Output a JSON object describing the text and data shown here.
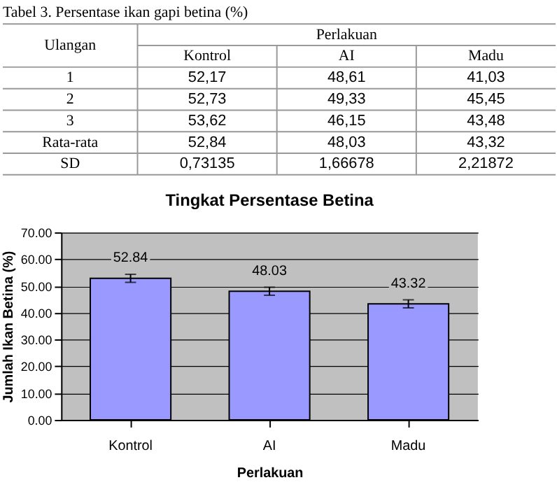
{
  "chart_data": {
    "type": "bar",
    "title": "Tingkat Persentase Betina",
    "xlabel": "Perlakuan",
    "ylabel": "Jumlah Ikan Betina (%)",
    "categories": [
      "Kontrol",
      "AI",
      "Madu"
    ],
    "values": [
      52.84,
      48.03,
      43.32
    ],
    "color": "#9999ff",
    "errors": [
      1.5,
      1.5,
      1.5
    ],
    "data_labels": true,
    "ylim": [
      0,
      70
    ],
    "yticks": [
      {
        "value": 0,
        "label": "0.00"
      },
      {
        "value": 10,
        "label": "10.00"
      },
      {
        "value": 20,
        "label": "20.00"
      },
      {
        "value": 30,
        "label": "30.00"
      },
      {
        "value": 40,
        "label": "40.00"
      },
      {
        "value": 50,
        "label": "50.00"
      },
      {
        "value": 60,
        "label": "60.00"
      },
      {
        "value": 70,
        "label": "70.00"
      }
    ],
    "grid": "y",
    "annotations": [
      "Tabel 3. Persentase ikan gapi betina (%)",
      "Ulangan",
      "Perlakuan",
      "Kontrol",
      "AI",
      "Madu",
      "1",
      "52,17",
      "48,61",
      "41,03",
      "2",
      "52,73",
      "49,33",
      "45,45",
      "3",
      "53,62",
      "46,15",
      "43,48",
      "Rata-rata",
      "52,84",
      "48,03",
      "43,32",
      "SD",
      "0,73135",
      "1,66678",
      "2,21872"
    ]
  }
}
